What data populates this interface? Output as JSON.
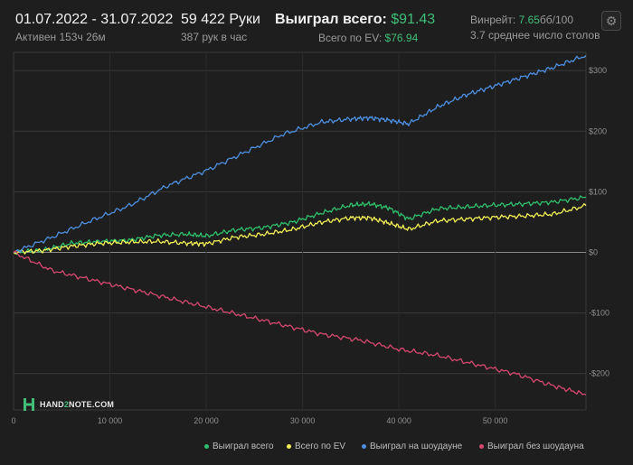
{
  "header": {
    "date_range": "01.07.2022 - 31.07.2022",
    "active_time": "Активен 153ч 26м",
    "hands": "59 422 Руки",
    "hands_per_hour": "387 рук в час",
    "won_total_label": "Выиграл всего:",
    "won_total_value": "$91.43",
    "ev_label": "Всего по EV:",
    "ev_value": "$76.94",
    "winrate_label": "Винрейт:",
    "winrate_value": "7.65",
    "winrate_unit": "бб/100",
    "avg_tables": "3.7 среднее число столов"
  },
  "logo": {
    "part1": "HAND",
    "part2": "2",
    "part3": "NOTE.COM"
  },
  "colors": {
    "background": "#1e1e1e",
    "accent_green": "#3fbf78",
    "won_total": "#2fbf6c",
    "ev": "#f2ef55",
    "showdown": "#4d8fe0",
    "non_showdown": "#d6486f"
  },
  "chart_data": {
    "type": "line",
    "x_range": [
      0,
      59422
    ],
    "y_range": [
      -260,
      330
    ],
    "x_ticks": [
      0,
      10000,
      20000,
      30000,
      40000,
      50000
    ],
    "x_tick_labels": [
      "0",
      "10 000",
      "20 000",
      "30 000",
      "40 000",
      "50 000"
    ],
    "y_ticks": [
      300,
      200,
      100,
      0,
      -100,
      -200
    ],
    "y_tick_labels": [
      "$300",
      "$200",
      "$100",
      "$0",
      "-$100",
      "-$200"
    ],
    "grid": true,
    "legend_position": "bottom-right",
    "series": [
      {
        "name": "Выиграл всего",
        "color": "#2fbf6c",
        "x": [
          0,
          3000,
          6000,
          9000,
          12000,
          15000,
          18000,
          20000,
          23000,
          26000,
          29000,
          32000,
          35000,
          37000,
          39000,
          41000,
          44000,
          47000,
          50000,
          53000,
          56000,
          59422
        ],
        "y": [
          0,
          3,
          15,
          18,
          20,
          28,
          30,
          27,
          37,
          41,
          50,
          65,
          78,
          80,
          73,
          55,
          72,
          75,
          78,
          80,
          83,
          91
        ]
      },
      {
        "name": "Всего по EV",
        "color": "#f2ef55",
        "x": [
          0,
          3000,
          6000,
          9000,
          12000,
          15000,
          18000,
          20000,
          23000,
          26000,
          29000,
          32000,
          35000,
          37000,
          39000,
          41000,
          44000,
          47000,
          50000,
          53000,
          56000,
          59422
        ],
        "y": [
          0,
          3,
          10,
          15,
          17,
          18,
          15,
          14,
          25,
          30,
          38,
          50,
          57,
          57,
          48,
          38,
          52,
          55,
          58,
          60,
          63,
          77
        ]
      },
      {
        "name": "Выиграл на шоудауне",
        "color": "#4d8fe0",
        "x": [
          0,
          4000,
          8000,
          12000,
          16000,
          20000,
          24000,
          28000,
          32000,
          35000,
          37000,
          39000,
          41000,
          44000,
          47000,
          50000,
          53000,
          56000,
          59422
        ],
        "y": [
          0,
          25,
          52,
          77,
          110,
          135,
          165,
          195,
          215,
          220,
          222,
          218,
          212,
          240,
          260,
          275,
          290,
          305,
          325
        ]
      },
      {
        "name": "Выиграл без шоудауна",
        "color": "#d6486f",
        "x": [
          0,
          4000,
          8000,
          12000,
          16000,
          20000,
          24000,
          28000,
          32000,
          36000,
          40000,
          44000,
          48000,
          52000,
          56000,
          59422
        ],
        "y": [
          0,
          -30,
          -45,
          -60,
          -75,
          -90,
          -105,
          -120,
          -135,
          -145,
          -160,
          -170,
          -185,
          -200,
          -220,
          -235
        ]
      }
    ]
  }
}
